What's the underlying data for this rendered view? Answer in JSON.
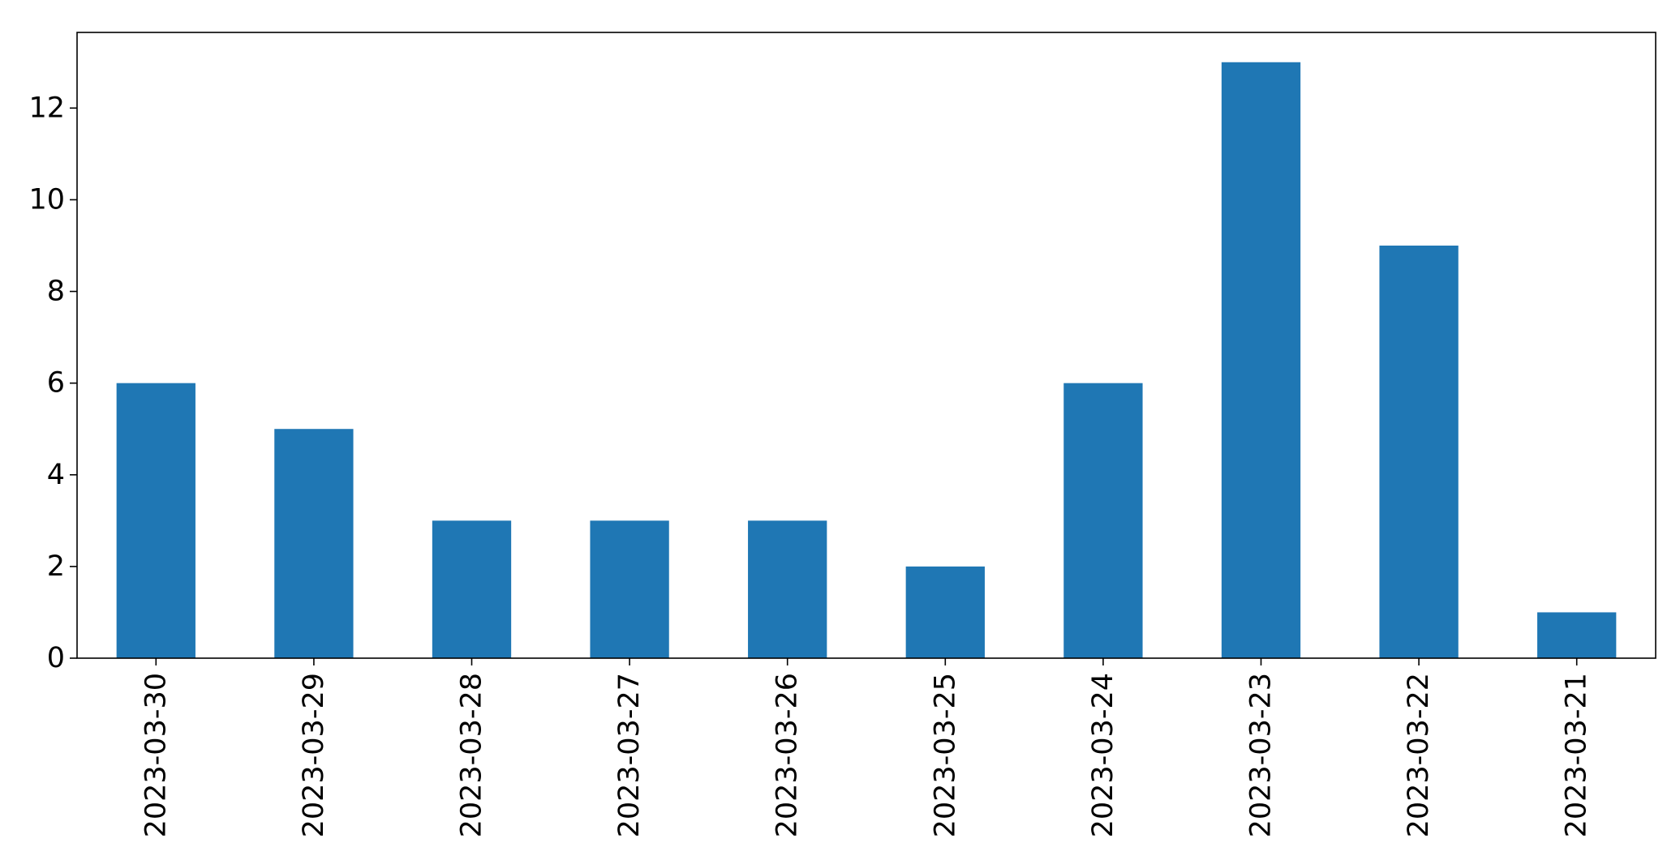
{
  "chart_data": {
    "type": "bar",
    "title": "",
    "xlabel": "",
    "ylabel": "",
    "categories": [
      "2023-03-30",
      "2023-03-29",
      "2023-03-28",
      "2023-03-27",
      "2023-03-26",
      "2023-03-25",
      "2023-03-24",
      "2023-03-23",
      "2023-03-22",
      "2023-03-21"
    ],
    "values": [
      6,
      5,
      3,
      3,
      3,
      2,
      6,
      13,
      9,
      1
    ],
    "ylim": [
      0,
      13.65
    ],
    "yticks": [
      0,
      2,
      4,
      6,
      8,
      10,
      12
    ],
    "grid": false,
    "legend": "none",
    "bar_color": "#1f77b4"
  }
}
